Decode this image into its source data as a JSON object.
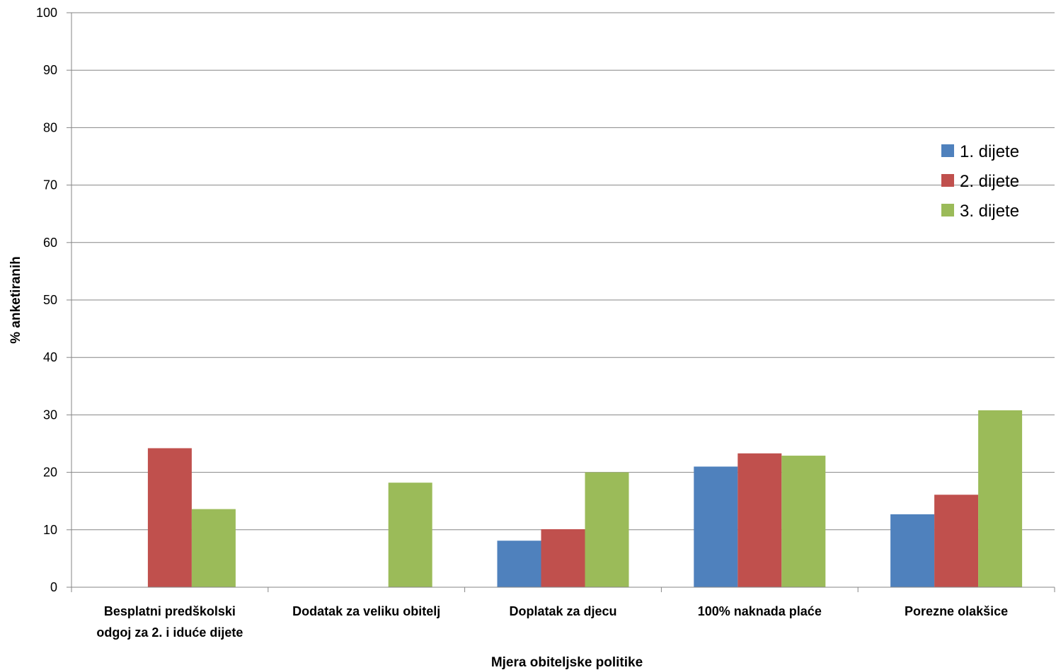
{
  "chart_data": {
    "type": "bar",
    "categories": [
      [
        "Besplatni predškolski",
        "odgoj za 2. i iduće dijete"
      ],
      [
        "Dodatak za veliku obitelj"
      ],
      [
        "Doplatak za djecu"
      ],
      [
        "100% naknada plaće"
      ],
      [
        "Porezne olakšice"
      ]
    ],
    "series": [
      {
        "name": "1. dijete",
        "color": "#4f81bd",
        "values": [
          0,
          0,
          8.1,
          21.0,
          12.7
        ]
      },
      {
        "name": "2. dijete",
        "color": "#c0504d",
        "values": [
          24.2,
          0,
          10.1,
          23.3,
          16.1
        ]
      },
      {
        "name": "3. dijete",
        "color": "#9bbb59",
        "values": [
          13.6,
          18.2,
          20.0,
          22.9,
          30.8
        ]
      }
    ],
    "xlabel": "Mjera obiteljske politike",
    "ylabel": "% anketiranih",
    "ylim": [
      0,
      100
    ],
    "yticks": [
      0,
      10,
      20,
      30,
      40,
      50,
      60,
      70,
      80,
      90,
      100
    ],
    "grid": true,
    "legend_position": "right"
  }
}
